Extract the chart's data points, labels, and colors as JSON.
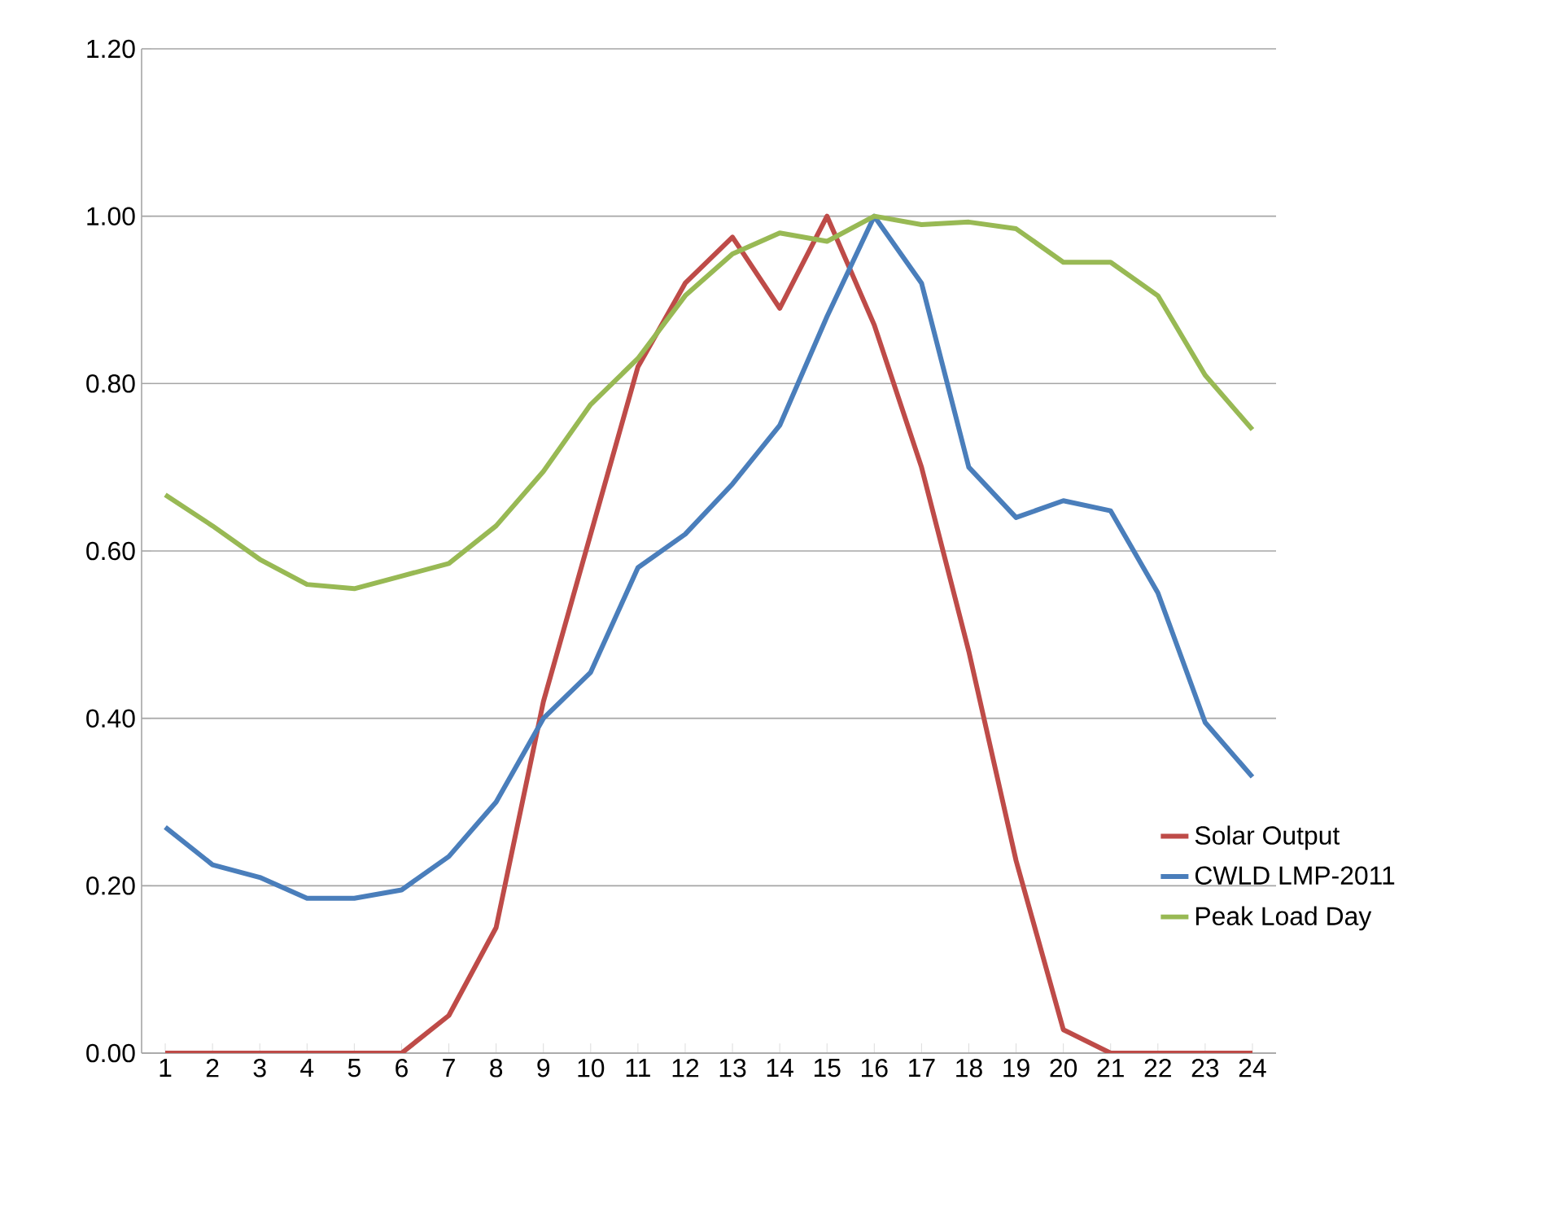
{
  "chart_data": {
    "type": "line",
    "categories": [
      "1",
      "2",
      "3",
      "4",
      "5",
      "6",
      "7",
      "8",
      "9",
      "10",
      "11",
      "12",
      "13",
      "14",
      "15",
      "16",
      "17",
      "18",
      "19",
      "20",
      "21",
      "22",
      "23",
      "24"
    ],
    "series": [
      {
        "name": "Solar Output",
        "color": "#be4b48",
        "values": [
          0,
          0,
          0,
          0,
          0,
          0,
          0.045,
          0.15,
          0.42,
          0.62,
          0.82,
          0.92,
          0.975,
          0.89,
          1.0,
          0.87,
          0.7,
          0.48,
          0.23,
          0.028,
          0,
          0,
          0,
          0
        ]
      },
      {
        "name": "CWLD LMP-2011",
        "color": "#4a7ebb",
        "values": [
          0.27,
          0.225,
          0.21,
          0.185,
          0.185,
          0.195,
          0.235,
          0.3,
          0.4,
          0.455,
          0.58,
          0.62,
          0.68,
          0.75,
          0.88,
          1.0,
          0.92,
          0.7,
          0.64,
          0.66,
          0.648,
          0.55,
          0.395,
          0.33
        ]
      },
      {
        "name": "Peak Load Day",
        "color": "#98b954",
        "values": [
          0.667,
          0.63,
          0.59,
          0.56,
          0.555,
          0.57,
          0.585,
          0.63,
          0.695,
          0.775,
          0.83,
          0.905,
          0.955,
          0.98,
          0.97,
          1.0,
          0.99,
          0.993,
          0.985,
          0.945,
          0.945,
          0.905,
          0.81,
          0.745
        ]
      }
    ],
    "ylim": [
      0,
      1.2
    ],
    "yticks": [
      {
        "value": 0,
        "label": "0.00"
      },
      {
        "value": 0.2,
        "label": "0.20"
      },
      {
        "value": 0.4,
        "label": "0.40"
      },
      {
        "value": 0.6,
        "label": "0.60"
      },
      {
        "value": 0.8,
        "label": "0.80"
      },
      {
        "value": 1.0,
        "label": "1.00"
      },
      {
        "value": 1.2,
        "label": "1.20"
      }
    ],
    "grid": "y",
    "legend": "right",
    "marker": "none",
    "line_style": "solid"
  }
}
